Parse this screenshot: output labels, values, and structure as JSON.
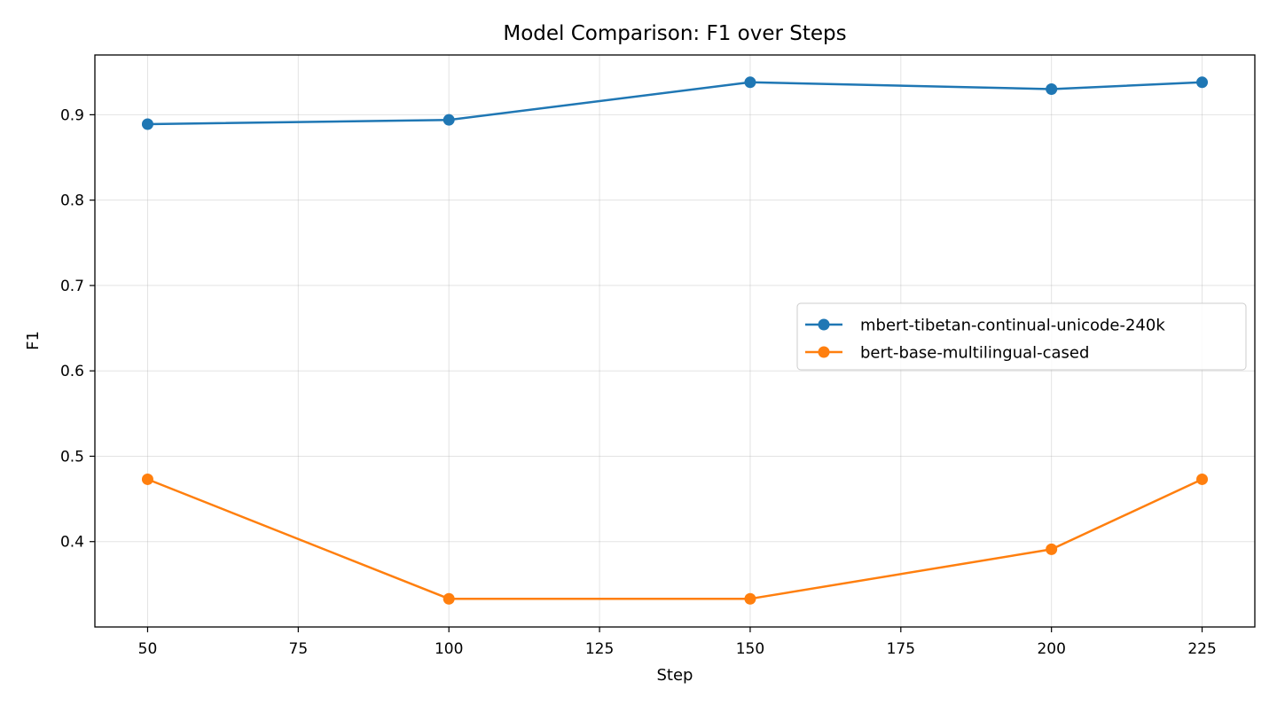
{
  "chart_data": {
    "type": "line",
    "title": "Model Comparison: F1 over Steps",
    "xlabel": "Step",
    "ylabel": "F1",
    "x": [
      50,
      100,
      150,
      200,
      225
    ],
    "xlim": [
      41.25,
      233.75
    ],
    "ylim": [
      0.3,
      0.97
    ],
    "xticks": [
      50,
      75,
      100,
      125,
      150,
      175,
      200,
      225
    ],
    "yticks": [
      0.4,
      0.5,
      0.6,
      0.7,
      0.8,
      0.9
    ],
    "xtick_labels": [
      "50",
      "75",
      "100",
      "125",
      "150",
      "175",
      "200",
      "225"
    ],
    "ytick_labels": [
      "0.4",
      "0.5",
      "0.6",
      "0.7",
      "0.8",
      "0.9"
    ],
    "grid": true,
    "legend_position": "center-right",
    "series": [
      {
        "name": "mbert-tibetan-continual-unicode-240k",
        "color": "#1f77b4",
        "values": [
          0.889,
          0.894,
          0.938,
          0.93,
          0.938
        ]
      },
      {
        "name": "bert-base-multilingual-cased",
        "color": "#ff7f0e",
        "values": [
          0.473,
          0.333,
          0.333,
          0.391,
          0.473
        ]
      }
    ]
  }
}
